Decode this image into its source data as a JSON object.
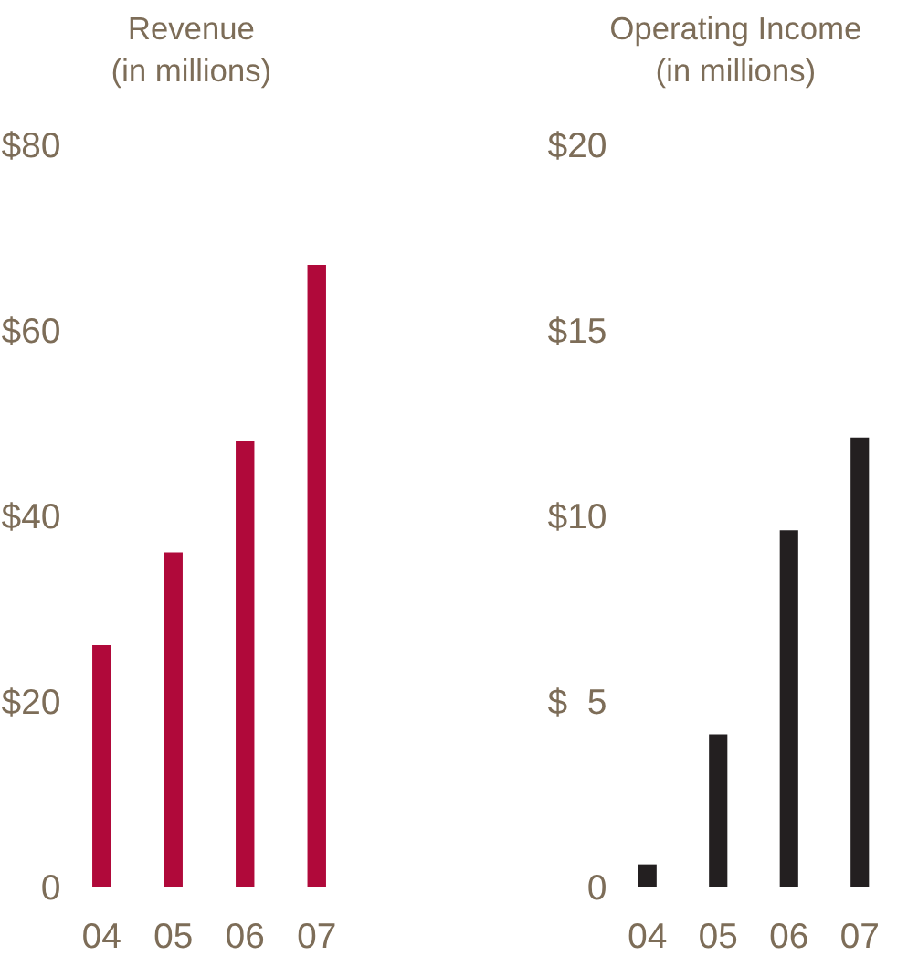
{
  "chart_data": [
    {
      "type": "bar",
      "title": "Revenue",
      "subtitle": "(in millions)",
      "categories": [
        "04",
        "05",
        "06",
        "07"
      ],
      "values": [
        26,
        36,
        48,
        67
      ],
      "color": "#b0093a",
      "ylim": [
        0,
        80
      ],
      "yticks": [
        {
          "value": 0,
          "label": "0"
        },
        {
          "value": 20,
          "label": "$20"
        },
        {
          "value": 40,
          "label": "$40"
        },
        {
          "value": 60,
          "label": "$60"
        },
        {
          "value": 80,
          "label": "$80"
        }
      ]
    },
    {
      "type": "bar",
      "title": "Operating Income",
      "subtitle": "(in millions)",
      "categories": [
        "04",
        "05",
        "06",
        "07"
      ],
      "values": [
        0.6,
        4.1,
        9.6,
        12.1
      ],
      "color": "#231f20",
      "ylim": [
        0,
        20
      ],
      "yticks": [
        {
          "value": 0,
          "label": "0"
        },
        {
          "value": 5,
          "label": "$  5"
        },
        {
          "value": 10,
          "label": "$10"
        },
        {
          "value": 15,
          "label": "$15"
        },
        {
          "value": 20,
          "label": "$20"
        }
      ]
    }
  ]
}
